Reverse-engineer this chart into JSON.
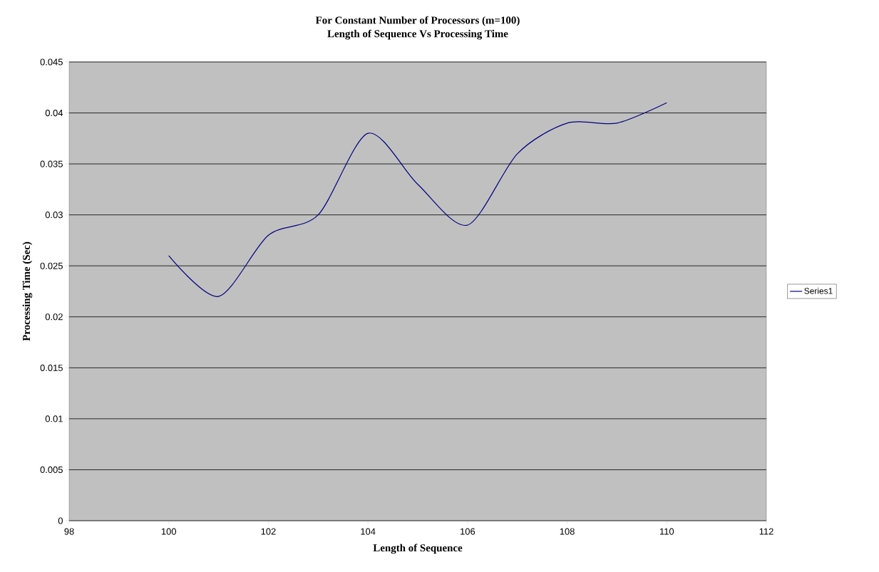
{
  "chart_data": {
    "type": "line",
    "title": "For Constant Number of Processors (m=100)",
    "subtitle": "Length of Sequence Vs Processing Time",
    "xlabel": "Length of Sequence",
    "ylabel": "Processing Time (Sec)",
    "x": [
      100,
      101,
      102,
      103,
      104,
      105,
      106,
      107,
      108,
      109,
      110
    ],
    "series": [
      {
        "name": "Series1",
        "color": "#000080",
        "values": [
          0.026,
          0.022,
          0.028,
          0.03,
          0.038,
          0.033,
          0.029,
          0.036,
          0.039,
          0.039,
          0.041
        ]
      }
    ],
    "xlim": [
      98,
      112
    ],
    "xticks": [
      98,
      100,
      102,
      104,
      106,
      108,
      110,
      112
    ],
    "ylim": [
      0,
      0.045
    ],
    "yticks": [
      0,
      0.005,
      0.01,
      0.015,
      0.02,
      0.025,
      0.03,
      0.035,
      0.04,
      0.045
    ],
    "grid": "y",
    "legend": "right",
    "marker": "none"
  }
}
